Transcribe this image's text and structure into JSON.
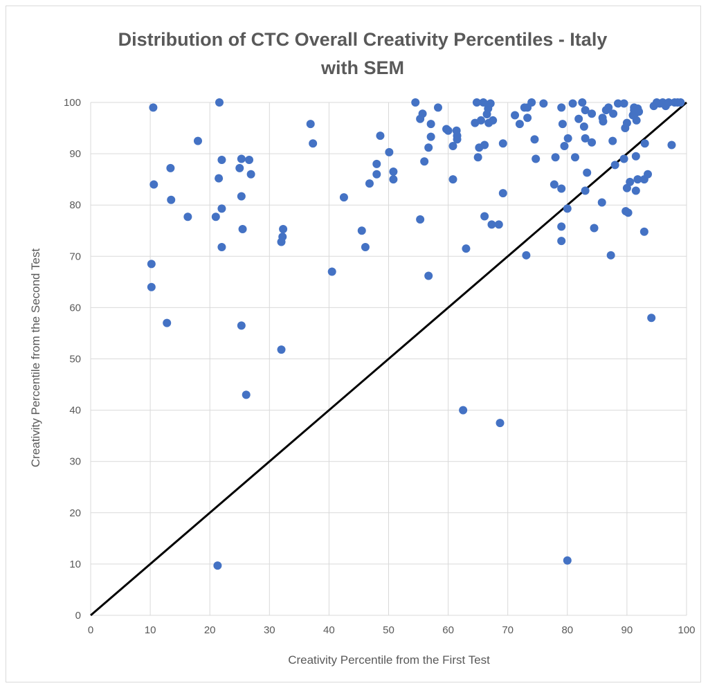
{
  "chart_data": {
    "type": "scatter",
    "title_lines": [
      "Distribution of CTC Overall Creativity Percentiles - Italy",
      "with SEM"
    ],
    "xlabel": "Creativity Percentile from the First Test",
    "ylabel": "Creativity Percentile from the Second Test",
    "xlim": [
      0,
      100
    ],
    "ylim": [
      0,
      100
    ],
    "x_ticks": [
      "0",
      "10",
      "20",
      "30",
      "40",
      "50",
      "60",
      "70",
      "80",
      "90",
      "100"
    ],
    "y_ticks": [
      "0",
      "10",
      "20",
      "30",
      "40",
      "50",
      "60",
      "70",
      "80",
      "90",
      "100"
    ],
    "grid": true,
    "legend": "none",
    "marker_color": "#4472c4",
    "reference_line": {
      "from": [
        0,
        0
      ],
      "to": [
        100,
        100
      ],
      "color": "#000000"
    },
    "points": [
      [
        10.5,
        99.0
      ],
      [
        10.6,
        84.0
      ],
      [
        10.2,
        68.5
      ],
      [
        10.2,
        64.0
      ],
      [
        12.8,
        57.0
      ],
      [
        13.4,
        87.2
      ],
      [
        13.5,
        81.0
      ],
      [
        16.3,
        77.7
      ],
      [
        18.0,
        92.5
      ],
      [
        21.0,
        77.7
      ],
      [
        21.6,
        100.0
      ],
      [
        21.5,
        85.2
      ],
      [
        22.0,
        88.8
      ],
      [
        22.0,
        79.3
      ],
      [
        22.0,
        71.8
      ],
      [
        21.3,
        9.7
      ],
      [
        25.0,
        87.2
      ],
      [
        25.3,
        89.0
      ],
      [
        25.3,
        81.7
      ],
      [
        25.5,
        75.3
      ],
      [
        25.3,
        56.5
      ],
      [
        26.1,
        43.0
      ],
      [
        26.6,
        88.8
      ],
      [
        26.9,
        86.0
      ],
      [
        32.0,
        72.8
      ],
      [
        32.2,
        73.8
      ],
      [
        32.3,
        75.3
      ],
      [
        32.0,
        51.8
      ],
      [
        36.9,
        95.8
      ],
      [
        37.3,
        92.0
      ],
      [
        40.5,
        67.0
      ],
      [
        42.5,
        81.5
      ],
      [
        45.5,
        75.0
      ],
      [
        46.1,
        71.8
      ],
      [
        46.8,
        84.2
      ],
      [
        48.0,
        88.0
      ],
      [
        48.0,
        86.0
      ],
      [
        48.6,
        93.5
      ],
      [
        50.1,
        90.3
      ],
      [
        50.8,
        86.5
      ],
      [
        50.8,
        85.0
      ],
      [
        54.5,
        100.0
      ],
      [
        55.3,
        96.8
      ],
      [
        55.7,
        97.8
      ],
      [
        56.0,
        88.5
      ],
      [
        55.3,
        77.2
      ],
      [
        56.7,
        91.2
      ],
      [
        57.1,
        95.8
      ],
      [
        57.1,
        93.3
      ],
      [
        56.7,
        66.2
      ],
      [
        58.3,
        99.0
      ],
      [
        59.7,
        94.8
      ],
      [
        60.0,
        94.5
      ],
      [
        60.8,
        91.5
      ],
      [
        60.8,
        85.0
      ],
      [
        61.4,
        94.5
      ],
      [
        61.5,
        93.5
      ],
      [
        61.5,
        92.8
      ],
      [
        62.5,
        40.0
      ],
      [
        63.0,
        71.5
      ],
      [
        64.5,
        96.0
      ],
      [
        64.8,
        100.0
      ],
      [
        65.0,
        89.3
      ],
      [
        65.2,
        91.2
      ],
      [
        65.5,
        96.5
      ],
      [
        65.9,
        100.0
      ],
      [
        66.1,
        91.7
      ],
      [
        66.1,
        77.8
      ],
      [
        66.5,
        97.7
      ],
      [
        66.7,
        98.8
      ],
      [
        66.8,
        96.0
      ],
      [
        67.1,
        99.8
      ],
      [
        67.3,
        76.2
      ],
      [
        67.5,
        96.5
      ],
      [
        68.5,
        76.2
      ],
      [
        68.7,
        37.5
      ],
      [
        69.2,
        82.3
      ],
      [
        69.2,
        92.0
      ],
      [
        71.2,
        97.5
      ],
      [
        72.0,
        95.8
      ],
      [
        72.8,
        99.0
      ],
      [
        73.3,
        97.0
      ],
      [
        73.1,
        70.2
      ],
      [
        73.3,
        99.0
      ],
      [
        74.0,
        100.0
      ],
      [
        74.5,
        92.8
      ],
      [
        74.7,
        89.0
      ],
      [
        76.0,
        99.8
      ],
      [
        78.0,
        89.3
      ],
      [
        77.8,
        84.0
      ],
      [
        79.0,
        83.2
      ],
      [
        79.0,
        75.8
      ],
      [
        79.0,
        73.0
      ],
      [
        79.0,
        99.0
      ],
      [
        79.2,
        95.8
      ],
      [
        79.5,
        91.5
      ],
      [
        80.0,
        79.3
      ],
      [
        80.1,
        93.0
      ],
      [
        80.0,
        10.7
      ],
      [
        80.9,
        99.8
      ],
      [
        81.3,
        89.3
      ],
      [
        81.9,
        96.8
      ],
      [
        82.5,
        100.0
      ],
      [
        82.8,
        95.3
      ],
      [
        83.0,
        93.0
      ],
      [
        83.0,
        82.8
      ],
      [
        83.3,
        86.3
      ],
      [
        83.0,
        98.5
      ],
      [
        84.1,
        92.2
      ],
      [
        84.1,
        97.8
      ],
      [
        84.5,
        75.5
      ],
      [
        85.8,
        80.5
      ],
      [
        85.9,
        97.0
      ],
      [
        86.0,
        96.3
      ],
      [
        86.5,
        98.5
      ],
      [
        86.9,
        99.0
      ],
      [
        87.3,
        70.2
      ],
      [
        87.6,
        92.5
      ],
      [
        87.7,
        97.8
      ],
      [
        88.0,
        87.8
      ],
      [
        88.5,
        99.8
      ],
      [
        89.5,
        89.0
      ],
      [
        89.5,
        99.8
      ],
      [
        89.7,
        95.0
      ],
      [
        90.0,
        96.0
      ],
      [
        89.8,
        78.8
      ],
      [
        90.0,
        83.3
      ],
      [
        90.2,
        78.5
      ],
      [
        90.5,
        84.5
      ],
      [
        91.0,
        97.5
      ],
      [
        91.2,
        98.5
      ],
      [
        91.2,
        99.0
      ],
      [
        91.5,
        98.0
      ],
      [
        91.5,
        82.8
      ],
      [
        91.5,
        89.5
      ],
      [
        91.6,
        96.5
      ],
      [
        91.8,
        98.8
      ],
      [
        91.8,
        85.0
      ],
      [
        92.0,
        98.2
      ],
      [
        92.9,
        85.0
      ],
      [
        93.0,
        92.0
      ],
      [
        92.9,
        74.8
      ],
      [
        93.5,
        86.0
      ],
      [
        94.1,
        58.0
      ],
      [
        94.5,
        99.3
      ],
      [
        95.0,
        100.0
      ],
      [
        95.5,
        99.8
      ],
      [
        96.0,
        100.0
      ],
      [
        96.5,
        99.3
      ],
      [
        97.0,
        100.0
      ],
      [
        97.5,
        91.7
      ],
      [
        98.0,
        100.0
      ],
      [
        98.5,
        100.0
      ],
      [
        99.0,
        100.0
      ]
    ]
  }
}
